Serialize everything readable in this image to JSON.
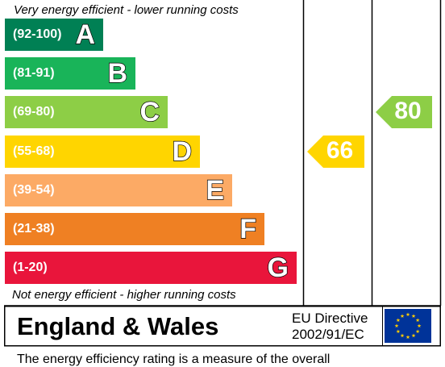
{
  "header": {
    "top_note": "Very energy efficient - lower running costs",
    "bottom_note": "Not energy efficient - higher running costs"
  },
  "chart_data": {
    "type": "bar",
    "categories": [
      "A",
      "B",
      "C",
      "D",
      "E",
      "F",
      "G"
    ],
    "bands": [
      {
        "letter": "A",
        "range": "(92-100)",
        "color": "#008054"
      },
      {
        "letter": "B",
        "range": "(81-91)",
        "color": "#19b459"
      },
      {
        "letter": "C",
        "range": "(69-80)",
        "color": "#8dce46"
      },
      {
        "letter": "D",
        "range": "(55-68)",
        "color": "#ffd500"
      },
      {
        "letter": "E",
        "range": "(39-54)",
        "color": "#fcaa65"
      },
      {
        "letter": "F",
        "range": "(21-38)",
        "color": "#ef8023"
      },
      {
        "letter": "G",
        "range": "(1-20)",
        "color": "#e9153b"
      }
    ],
    "current": {
      "value": 66,
      "band": "D",
      "color": "#ffd500"
    },
    "potential": {
      "value": 80,
      "band": "C",
      "color": "#8dce46"
    }
  },
  "footer": {
    "region": "England & Wales",
    "directive_line1": "EU Directive",
    "directive_line2": "2002/91/EC",
    "flag_color": "#003399",
    "star_color": "#ffcc00",
    "cut_text": "The energy efficiency rating is a measure of the overall"
  }
}
